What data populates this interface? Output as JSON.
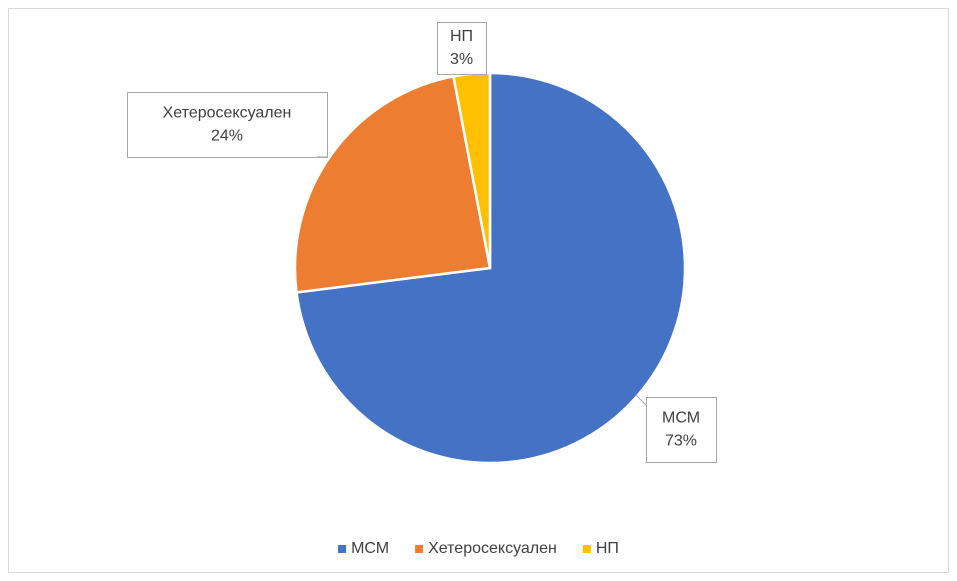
{
  "chart_data": {
    "type": "pie",
    "categories": [
      "МСМ",
      "Хетеросексуален",
      "НП"
    ],
    "values": [
      73,
      24,
      3
    ],
    "value_labels": [
      "73%",
      "24%",
      "3%"
    ],
    "colors": [
      "#4472c4",
      "#ed7d31",
      "#ffc000"
    ],
    "legend": "bottom"
  }
}
